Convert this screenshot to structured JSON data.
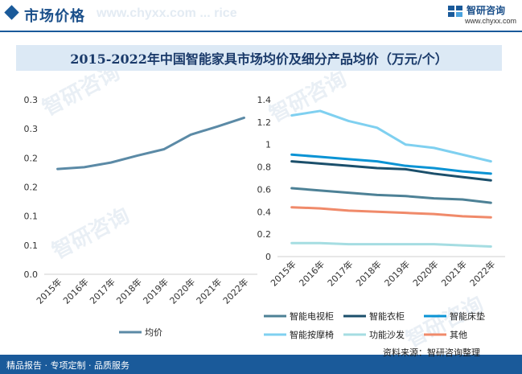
{
  "header": {
    "title": "市场价格",
    "watermark": "www.chyxx.com ... rice"
  },
  "logo": {
    "name": "智研咨询",
    "url": "www.chyxx.com"
  },
  "footer": {
    "left": "精品报告 · 专项定制 · 品质服务",
    "source": "资料来源：智研咨询整理"
  },
  "watermark_text": "智研咨询",
  "colors": {
    "accent": "#1a5a9a",
    "avg": "#5b8aa6",
    "tv_cabinet": "#4d8196",
    "wardrobe": "#1b4f6b",
    "mattress": "#0a93d4",
    "massage_chair": "#7fd0f0",
    "sofa": "#a5dde2",
    "other": "#f08a6a"
  },
  "chart_data": [
    {
      "type": "line",
      "title": "2015-2022年中国智能家具市场均价及细分产品均价（万元/个）",
      "categories": [
        "2015年",
        "2016年",
        "2017年",
        "2018年",
        "2019年",
        "2020年",
        "2021年",
        "2022年"
      ],
      "yticks": [
        "0.0",
        "0.1",
        "0.1",
        "0.2",
        "0.2",
        "0.3",
        "0.3"
      ],
      "ylim": [
        0,
        0.3
      ],
      "grid": false,
      "legend": "bottom",
      "series": [
        {
          "name": "均价",
          "values": [
            0.181,
            0.184,
            0.192,
            0.204,
            0.215,
            0.24,
            0.254,
            0.269
          ]
        }
      ]
    },
    {
      "type": "line",
      "categories": [
        "2015年",
        "2016年",
        "2017年",
        "2018年",
        "2019年",
        "2020年",
        "2021年",
        "2022年"
      ],
      "yticks": [
        "0",
        "0.2",
        "0.4",
        "0.6",
        "0.8",
        "1",
        "1.2",
        "1.4"
      ],
      "ylim": [
        0,
        1.4
      ],
      "grid": false,
      "legend": "bottom",
      "series": [
        {
          "name": "智能电视柜",
          "values": [
            0.61,
            0.59,
            0.57,
            0.55,
            0.54,
            0.52,
            0.51,
            0.48
          ]
        },
        {
          "name": "智能衣柜",
          "values": [
            0.85,
            0.83,
            0.81,
            0.79,
            0.78,
            0.74,
            0.71,
            0.68
          ]
        },
        {
          "name": "智能床垫",
          "values": [
            0.91,
            0.89,
            0.87,
            0.85,
            0.81,
            0.79,
            0.76,
            0.74
          ]
        },
        {
          "name": "智能按摩椅",
          "values": [
            1.26,
            1.3,
            1.21,
            1.15,
            1.0,
            0.97,
            0.91,
            0.85
          ]
        },
        {
          "name": "功能沙发",
          "values": [
            0.12,
            0.12,
            0.11,
            0.11,
            0.11,
            0.11,
            0.1,
            0.09
          ]
        },
        {
          "name": "其他",
          "values": [
            0.44,
            0.43,
            0.41,
            0.4,
            0.39,
            0.38,
            0.36,
            0.35
          ]
        }
      ]
    }
  ]
}
